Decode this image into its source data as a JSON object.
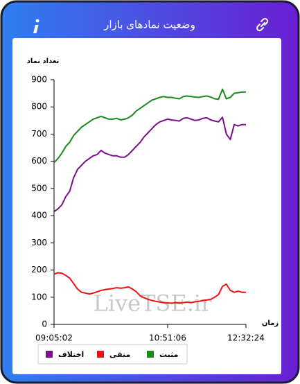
{
  "header": {
    "title": "وضعیت نمادهای بازار"
  },
  "watermark": "LiveTSE.ir",
  "chart_data": {
    "type": "line",
    "y_label": "تعداد نماد",
    "x_label": "زمان",
    "categories": [
      "09:05:02",
      null,
      null,
      null,
      null,
      null,
      null,
      null,
      null,
      null,
      null,
      null,
      null,
      null,
      null,
      null,
      null,
      null,
      null,
      null,
      null,
      null,
      null,
      null,
      null,
      null,
      null,
      null,
      null,
      "10:51:06",
      null,
      null,
      null,
      null,
      null,
      null,
      null,
      null,
      null,
      null,
      null,
      null,
      null,
      null,
      null,
      null,
      null,
      null,
      null,
      "12:32:24"
    ],
    "ylim": [
      0,
      900
    ],
    "yticks": [
      0,
      100,
      200,
      300,
      400,
      500,
      600,
      700,
      800,
      900
    ],
    "grid": false,
    "legend": "bottom",
    "series": [
      {
        "name": "مثبت",
        "color": "#1a8a1a",
        "values": [
          595,
          610,
          630,
          655,
          670,
          695,
          710,
          725,
          735,
          745,
          755,
          760,
          765,
          760,
          755,
          755,
          758,
          752,
          755,
          760,
          770,
          785,
          795,
          805,
          815,
          825,
          830,
          835,
          838,
          835,
          835,
          832,
          830,
          838,
          840,
          838,
          836,
          835,
          838,
          840,
          836,
          830,
          828,
          865,
          830,
          835,
          850,
          852,
          855,
          855
        ]
      },
      {
        "name": "منفی",
        "color": "#ee1111",
        "values": [
          185,
          190,
          188,
          180,
          170,
          150,
          130,
          118,
          115,
          112,
          115,
          120,
          125,
          128,
          130,
          132,
          135,
          133,
          135,
          138,
          130,
          120,
          105,
          98,
          92,
          88,
          85,
          82,
          80,
          79,
          78,
          80,
          78,
          80,
          82,
          80,
          83,
          85,
          88,
          90,
          92,
          100,
          110,
          140,
          148,
          125,
          118,
          122,
          118,
          118
        ]
      },
      {
        "name": "اختلاف",
        "color": "#7a0f8a",
        "values": [
          415,
          425,
          440,
          470,
          490,
          540,
          570,
          585,
          600,
          610,
          620,
          625,
          640,
          630,
          625,
          620,
          620,
          615,
          615,
          625,
          640,
          655,
          670,
          690,
          705,
          720,
          735,
          745,
          750,
          755,
          752,
          750,
          748,
          758,
          760,
          755,
          750,
          752,
          758,
          760,
          752,
          748,
          745,
          762,
          700,
          680,
          735,
          730,
          735,
          735
        ]
      }
    ]
  }
}
